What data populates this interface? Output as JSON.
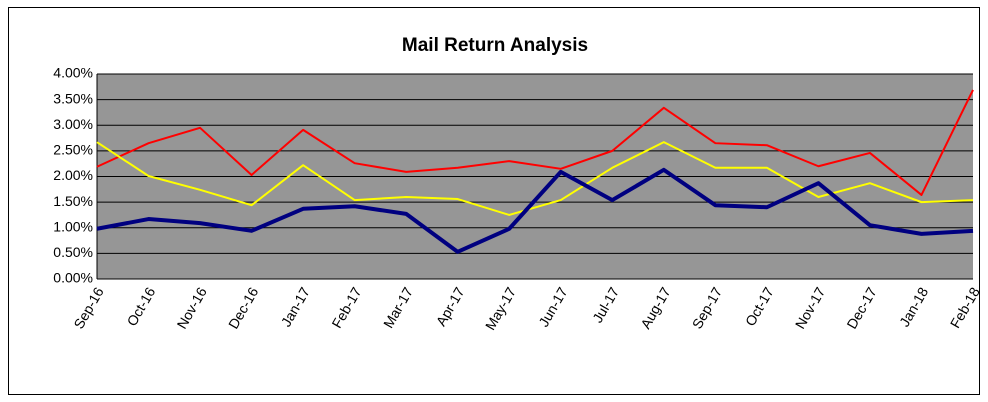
{
  "chart_data": {
    "type": "line",
    "title": "Mail Return Analysis",
    "categories": [
      "Sep-16",
      "Oct-16",
      "Nov-16",
      "Dec-16",
      "Jan-17",
      "Feb-17",
      "Mar-17",
      "Apr-17",
      "May-17",
      "Jun-17",
      "Jul-17",
      "Aug-17",
      "Sep-17",
      "Oct-17",
      "Nov-17",
      "Dec-17",
      "Jan-18",
      "Feb-18"
    ],
    "series": [
      {
        "color": "#ff0000",
        "values": [
          2.19,
          2.65,
          2.95,
          2.03,
          2.91,
          2.26,
          2.09,
          2.17,
          2.3,
          2.15,
          2.5,
          3.34,
          2.65,
          2.61,
          2.2,
          2.46,
          1.64,
          3.69
        ]
      },
      {
        "color": "#ffff00",
        "values": [
          2.67,
          2.01,
          1.74,
          1.44,
          2.22,
          1.54,
          1.6,
          1.56,
          1.25,
          1.54,
          2.17,
          2.67,
          2.17,
          2.17,
          1.6,
          1.87,
          1.5,
          1.54
        ]
      },
      {
        "color": "#000080",
        "values": [
          0.98,
          1.17,
          1.09,
          0.94,
          1.37,
          1.42,
          1.27,
          0.53,
          0.98,
          2.09,
          1.54,
          2.13,
          1.44,
          1.4,
          1.87,
          1.05,
          0.88,
          0.94
        ]
      }
    ],
    "ylim": [
      0,
      4
    ],
    "yticks": [
      {
        "value": 0,
        "label": "0.00%"
      },
      {
        "value": 0.5,
        "label": "0.50%"
      },
      {
        "value": 1,
        "label": "1.00%"
      },
      {
        "value": 1.5,
        "label": "1.50%"
      },
      {
        "value": 2,
        "label": "2.00%"
      },
      {
        "value": 2.5,
        "label": "2.50%"
      },
      {
        "value": 3,
        "label": "3.00%"
      },
      {
        "value": 3.5,
        "label": "3.50%"
      },
      {
        "value": 4,
        "label": "4.00%"
      }
    ],
    "grid": true,
    "plot_background": "#969696"
  }
}
